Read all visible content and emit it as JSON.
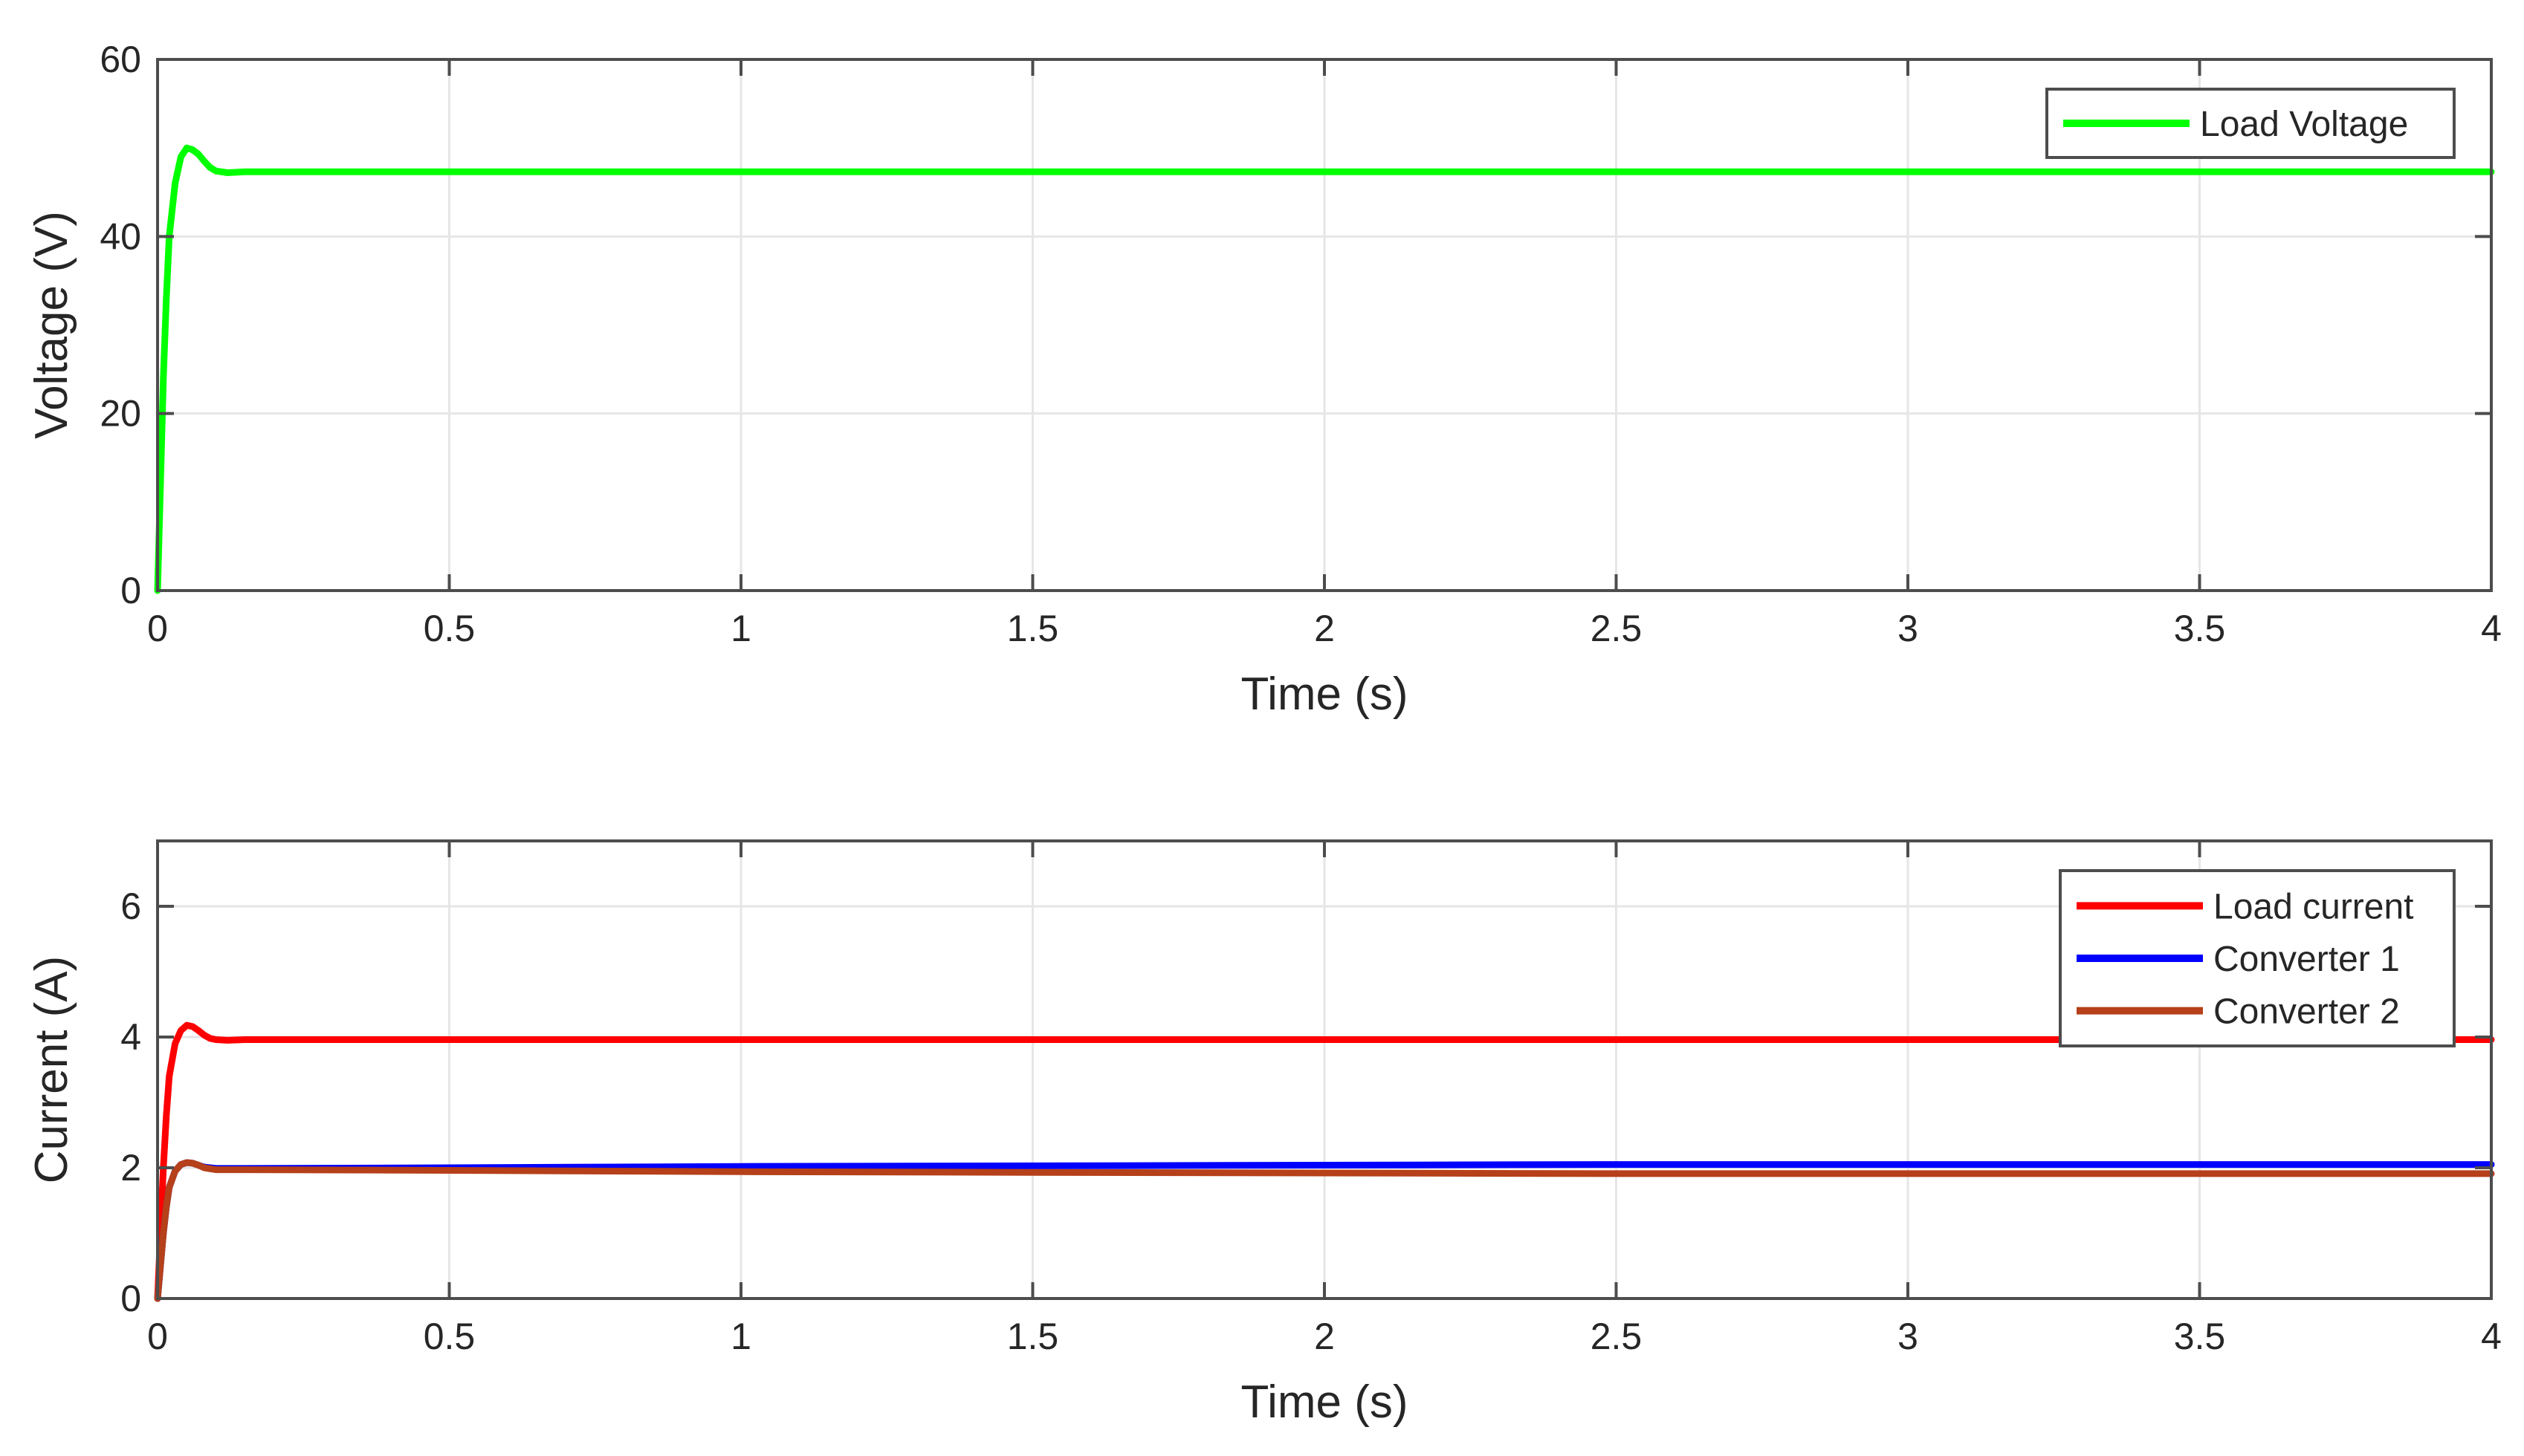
{
  "chart_data": [
    {
      "type": "line",
      "xlabel": "Time (s)",
      "ylabel": "Voltage (V)",
      "xlim": [
        0,
        4
      ],
      "ylim": [
        0,
        60
      ],
      "xticks": [
        0,
        0.5,
        1,
        1.5,
        2,
        2.5,
        3,
        3.5,
        4
      ],
      "xtick_labels": [
        "0",
        "0.5",
        "1",
        "1.5",
        "2",
        "2.5",
        "3",
        "3.5",
        "4"
      ],
      "yticks": [
        0,
        20,
        40,
        60
      ],
      "ytick_labels": [
        "0",
        "20",
        "40",
        "60"
      ],
      "grid": true,
      "legend_position": "top-right",
      "series": [
        {
          "name": "Load Voltage",
          "color": "#00ff00",
          "x": [
            0,
            0.005,
            0.01,
            0.015,
            0.02,
            0.03,
            0.04,
            0.05,
            0.06,
            0.07,
            0.08,
            0.09,
            0.1,
            0.12,
            0.15,
            0.3,
            1,
            2,
            3,
            4
          ],
          "y": [
            0,
            12,
            24,
            33,
            40,
            46,
            49,
            50,
            49.8,
            49.3,
            48.5,
            47.8,
            47.4,
            47.2,
            47.3,
            47.3,
            47.3,
            47.3,
            47.3,
            47.3
          ]
        }
      ]
    },
    {
      "type": "line",
      "xlabel": "Time (s)",
      "ylabel": "Current (A)",
      "xlim": [
        0,
        4
      ],
      "ylim": [
        0,
        7
      ],
      "xticks": [
        0,
        0.5,
        1,
        1.5,
        2,
        2.5,
        3,
        3.5,
        4
      ],
      "xtick_labels": [
        "0",
        "0.5",
        "1",
        "1.5",
        "2",
        "2.5",
        "3",
        "3.5",
        "4"
      ],
      "yticks": [
        0,
        2,
        4,
        6
      ],
      "ytick_labels": [
        "0",
        "2",
        "4",
        "6"
      ],
      "grid": true,
      "legend_position": "top-right",
      "series": [
        {
          "name": "Load current",
          "color": "#ff0000",
          "x": [
            0,
            0.005,
            0.01,
            0.015,
            0.02,
            0.03,
            0.04,
            0.05,
            0.06,
            0.07,
            0.08,
            0.09,
            0.1,
            0.12,
            0.15,
            0.3,
            1,
            2,
            3,
            4
          ],
          "y": [
            0,
            1.0,
            2.0,
            2.8,
            3.4,
            3.9,
            4.1,
            4.18,
            4.16,
            4.1,
            4.03,
            3.98,
            3.96,
            3.95,
            3.96,
            3.96,
            3.96,
            3.96,
            3.96,
            3.96
          ]
        },
        {
          "name": "Converter 1",
          "color": "#0000ff",
          "x": [
            0,
            0.005,
            0.01,
            0.015,
            0.02,
            0.03,
            0.04,
            0.05,
            0.06,
            0.07,
            0.08,
            0.1,
            0.15,
            0.5,
            1,
            1.5,
            2,
            2.5,
            3,
            3.5,
            4
          ],
          "y": [
            0,
            0.5,
            1.0,
            1.4,
            1.7,
            1.95,
            2.05,
            2.08,
            2.07,
            2.04,
            2.01,
            1.99,
            1.99,
            2.0,
            2.02,
            2.03,
            2.04,
            2.05,
            2.05,
            2.05,
            2.05
          ]
        },
        {
          "name": "Converter 2",
          "color": "#b5401a",
          "x": [
            0,
            0.005,
            0.01,
            0.015,
            0.02,
            0.03,
            0.04,
            0.05,
            0.06,
            0.07,
            0.08,
            0.1,
            0.15,
            0.5,
            1,
            1.5,
            2,
            2.5,
            3,
            3.5,
            4
          ],
          "y": [
            0,
            0.5,
            1.0,
            1.4,
            1.7,
            1.95,
            2.05,
            2.08,
            2.07,
            2.04,
            2.0,
            1.97,
            1.97,
            1.96,
            1.94,
            1.93,
            1.92,
            1.91,
            1.91,
            1.91,
            1.91
          ]
        }
      ]
    }
  ]
}
